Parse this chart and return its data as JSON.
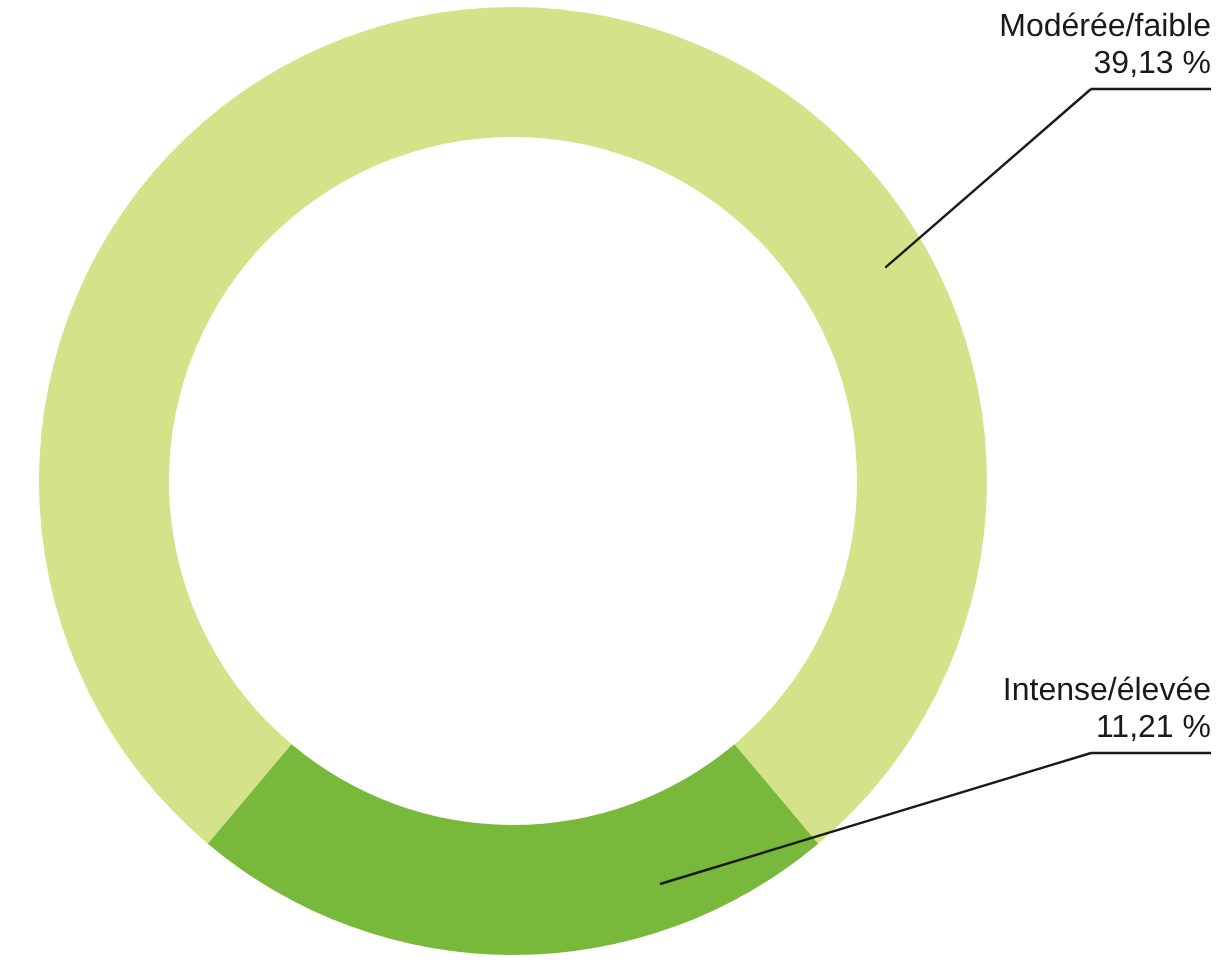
{
  "chart_data": {
    "type": "donut",
    "categories": [
      "Modérée/faible",
      "Intense/élevée"
    ],
    "values": [
      39.13,
      11.21
    ],
    "colors": [
      "#d4e38a",
      "#78b83a"
    ],
    "value_labels": [
      "39,13 %",
      "11,21 %"
    ]
  }
}
